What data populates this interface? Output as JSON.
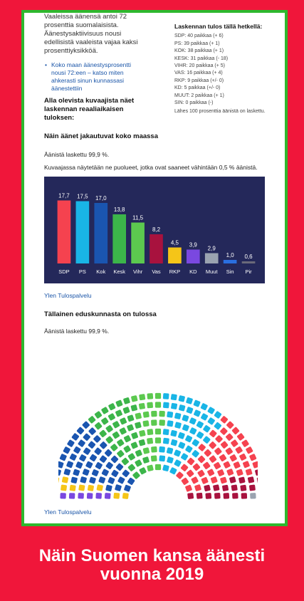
{
  "article": {
    "intro_lines": [
      "Vaaleissa äänensä antoi 72",
      "prosenttia suomalaisista.",
      "Äänestysaktiivisuus nousi",
      "edellisistä vaaleista vajaa kaksi",
      "prosenttiyksikköä."
    ],
    "bullet_link": "Koko maan äänestysprosentti nousi 72:een – katso miten ahkerasti sinun kunnassasi äänestettiin",
    "bold_note": "Alla olevista kuvaajista näet laskennan reaaliaikaisen tuloksen:"
  },
  "results_box": {
    "title": "Laskennan tulos tällä hetkellä:",
    "lines": [
      "SDP: 40 paikkaa (+ 6)",
      "PS: 39 paikkaa (+ 1)",
      "KOK: 38 paikkaa (+ 1)",
      "KESK: 31 paikkaa (- 18)",
      "VIHR: 20 paikkaa (+ 5)",
      "VAS: 16 paikkaa (+ 4)",
      "RKP: 9 paikkaa (+/- 0)",
      "KD: 5 paikkaa (+/- 0)",
      "MUUT: 2 paikkaa (+ 1)",
      "SIN: 0 paikkaa (-)"
    ],
    "counted_note": "Lähes 100 prosenttia äänistä on laskettu."
  },
  "vote_section": {
    "title": "Näin äänet jakautuvat koko maassa",
    "counted": "Äänistä laskettu 99,9 %.",
    "explanation": "Kuvaajassa näytetään ne puolueet, jotka ovat saaneet vähintään 0,5 % äänistä.",
    "source": "Ylen Tulospalvelu"
  },
  "seat_section": {
    "title": "Tällainen eduskunnasta on tulossa",
    "counted": "Äänistä laskettu 99,9 %.",
    "source": "Ylen Tulospalvelu"
  },
  "caption": {
    "line1": "Näin Suomen kansa äänesti",
    "line2": "vuonna 2019"
  },
  "chart_data": {
    "type": "bar",
    "categories": [
      "SDP",
      "PS",
      "Kok",
      "Kesk",
      "Vihr",
      "Vas",
      "RKP",
      "KD",
      "Muut",
      "Sin",
      "Pir"
    ],
    "values": [
      17.7,
      17.5,
      17.0,
      13.8,
      11.5,
      8.2,
      4.5,
      3.9,
      2.9,
      1.0,
      0.6
    ],
    "value_labels": [
      "17,7",
      "17,5",
      "17,0",
      "13,8",
      "11,5",
      "8,2",
      "4,5",
      "3,9",
      "2,9",
      "1,0",
      "0,6"
    ],
    "colors": [
      "#f5424f",
      "#19b5e6",
      "#1a55b0",
      "#3cb54a",
      "#5cc94f",
      "#a8123e",
      "#f5c518",
      "#7a48e0",
      "#9aa3b0",
      "#2a6fe0",
      "#6a6a7a"
    ],
    "title": "",
    "xlabel": "",
    "ylabel": "",
    "ylim": [
      0,
      20
    ],
    "background": "#24285a"
  },
  "parliament": {
    "seats": [
      40,
      39,
      38,
      31,
      20,
      16,
      9,
      5,
      2
    ],
    "parties": [
      "SDP",
      "PS",
      "KOK",
      "KESK",
      "VIHR",
      "VAS",
      "RKP",
      "KD",
      "MUUT"
    ]
  }
}
